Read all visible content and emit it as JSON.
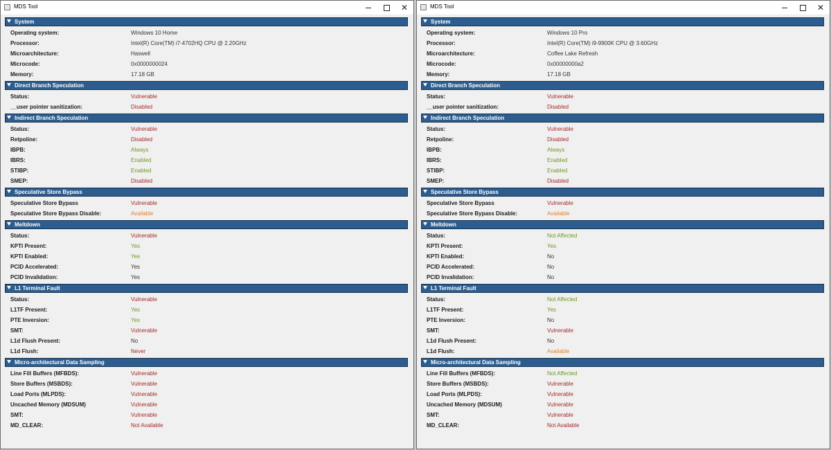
{
  "colors": {
    "header_bg": "#2c5d8e",
    "vulnerable": "#a52a2a",
    "ok": "#6b9a1f",
    "warning": "#e67e22",
    "plain": "#333333"
  },
  "windows": [
    {
      "title": "MDS Tool",
      "sections": [
        {
          "header": "System",
          "rows": [
            {
              "label": "Operating system:",
              "value": "Windows 10 Home",
              "status": "plain"
            },
            {
              "label": "Processor:",
              "value": "Intel(R) Core(TM) i7-4702HQ CPU @ 2.20GHz",
              "status": "plain"
            },
            {
              "label": "Microarchitecture:",
              "value": "Haswell",
              "status": "plain"
            },
            {
              "label": "Microcode:",
              "value": "0x0000000024",
              "status": "plain"
            },
            {
              "label": "Memory:",
              "value": "17.18 GB",
              "status": "plain"
            }
          ]
        },
        {
          "header": "Direct Branch Speculation",
          "rows": [
            {
              "label": "Status:",
              "value": "Vulnerable",
              "status": "red"
            },
            {
              "label": "__user pointer sanitization:",
              "value": "Disabled",
              "status": "red"
            }
          ]
        },
        {
          "header": "Indirect Branch Speculation",
          "rows": [
            {
              "label": "Status:",
              "value": "Vulnerable",
              "status": "red"
            },
            {
              "label": "Retpoline:",
              "value": "Disabled",
              "status": "red"
            },
            {
              "label": "IBPB:",
              "value": "Always",
              "status": "green"
            },
            {
              "label": "IBRS:",
              "value": "Enabled",
              "status": "green"
            },
            {
              "label": "STIBP:",
              "value": "Enabled",
              "status": "green"
            },
            {
              "label": "SMEP:",
              "value": "Disabled",
              "status": "red"
            }
          ]
        },
        {
          "header": "Speculative Store Bypass",
          "rows": [
            {
              "label": "Speculative Store Bypass",
              "value": "Vulnerable",
              "status": "red"
            },
            {
              "label": "Speculative Store Bypass Disable:",
              "value": "Available",
              "status": "orange"
            }
          ]
        },
        {
          "header": "Meltdown",
          "rows": [
            {
              "label": "Status:",
              "value": "Vulnerable",
              "status": "red"
            },
            {
              "label": "KPTI Present:",
              "value": "Yes",
              "status": "green"
            },
            {
              "label": "KPTI Enabled:",
              "value": "Yes",
              "status": "green"
            },
            {
              "label": "PCID Accelerated:",
              "value": "Yes",
              "status": "plain"
            },
            {
              "label": "PCID Invalidation:",
              "value": "Yes",
              "status": "plain"
            }
          ]
        },
        {
          "header": "L1 Terminal Fault",
          "rows": [
            {
              "label": "Status:",
              "value": "Vulnerable",
              "status": "red"
            },
            {
              "label": "L1TF Present:",
              "value": "Yes",
              "status": "green"
            },
            {
              "label": "PTE Inversion:",
              "value": "Yes",
              "status": "green"
            },
            {
              "label": "SMT:",
              "value": "Vulnerable",
              "status": "red"
            },
            {
              "label": "L1d Flush Present:",
              "value": "No",
              "status": "plain"
            },
            {
              "label": "L1d Flush:",
              "value": "Never",
              "status": "red"
            }
          ]
        },
        {
          "header": "Micro-architectural Data Sampling",
          "rows": [
            {
              "label": "Line Fill Buffers (MFBDS):",
              "value": "Vulnerable",
              "status": "red"
            },
            {
              "label": "Store Buffers (MSBDS):",
              "value": "Vulnerable",
              "status": "red"
            },
            {
              "label": "Load Ports (MLPDS):",
              "value": "Vulnerable",
              "status": "red"
            },
            {
              "label": "Uncached Memory (MDSUM)",
              "value": "Vulnerable",
              "status": "red"
            },
            {
              "label": "SMT:",
              "value": "Vulnerable",
              "status": "red"
            },
            {
              "label": "MD_CLEAR:",
              "value": "Not Available",
              "status": "red"
            }
          ]
        }
      ]
    },
    {
      "title": "MDS Tool",
      "sections": [
        {
          "header": "System",
          "rows": [
            {
              "label": "Operating system:",
              "value": "Windows 10 Pro",
              "status": "plain"
            },
            {
              "label": "Processor:",
              "value": "Intel(R) Core(TM) i9-9900K CPU @ 3.60GHz",
              "status": "plain"
            },
            {
              "label": "Microarchitecture:",
              "value": "Coffee Lake Refresh",
              "status": "plain"
            },
            {
              "label": "Microcode:",
              "value": "0x00000000a2",
              "status": "plain"
            },
            {
              "label": "Memory:",
              "value": "17.18 GB",
              "status": "plain"
            }
          ]
        },
        {
          "header": "Direct Branch Speculation",
          "rows": [
            {
              "label": "Status:",
              "value": "Vulnerable",
              "status": "red"
            },
            {
              "label": "__user pointer sanitization:",
              "value": "Disabled",
              "status": "red"
            }
          ]
        },
        {
          "header": "Indirect Branch Speculation",
          "rows": [
            {
              "label": "Status:",
              "value": "Vulnerable",
              "status": "red"
            },
            {
              "label": "Retpoline:",
              "value": "Disabled",
              "status": "red"
            },
            {
              "label": "IBPB:",
              "value": "Always",
              "status": "green"
            },
            {
              "label": "IBRS:",
              "value": "Enabled",
              "status": "green"
            },
            {
              "label": "STIBP:",
              "value": "Enabled",
              "status": "green"
            },
            {
              "label": "SMEP:",
              "value": "Disabled",
              "status": "red"
            }
          ]
        },
        {
          "header": "Speculative Store Bypass",
          "rows": [
            {
              "label": "Speculative Store Bypass",
              "value": "Vulnerable",
              "status": "red"
            },
            {
              "label": "Speculative Store Bypass Disable:",
              "value": "Available",
              "status": "orange"
            }
          ]
        },
        {
          "header": "Meltdown",
          "rows": [
            {
              "label": "Status:",
              "value": "Not Affected",
              "status": "green"
            },
            {
              "label": "KPTI Present:",
              "value": "Yes",
              "status": "green"
            },
            {
              "label": "KPTI Enabled:",
              "value": "No",
              "status": "plain"
            },
            {
              "label": "PCID Accelerated:",
              "value": "No",
              "status": "plain"
            },
            {
              "label": "PCID Invalidation:",
              "value": "No",
              "status": "plain"
            }
          ]
        },
        {
          "header": "L1 Terminal Fault",
          "rows": [
            {
              "label": "Status:",
              "value": "Not Affected",
              "status": "green"
            },
            {
              "label": "L1TF Present:",
              "value": "Yes",
              "status": "green"
            },
            {
              "label": "PTE Inversion:",
              "value": "No",
              "status": "plain"
            },
            {
              "label": "SMT:",
              "value": "Vulnerable",
              "status": "red"
            },
            {
              "label": "L1d Flush Present:",
              "value": "No",
              "status": "plain"
            },
            {
              "label": "L1d Flush:",
              "value": "Available",
              "status": "orange"
            }
          ]
        },
        {
          "header": "Micro-architectural Data Sampling",
          "rows": [
            {
              "label": "Line Fill Buffers (MFBDS):",
              "value": "Not Affected",
              "status": "green"
            },
            {
              "label": "Store Buffers (MSBDS):",
              "value": "Vulnerable",
              "status": "red"
            },
            {
              "label": "Load Ports (MLPDS):",
              "value": "Vulnerable",
              "status": "red"
            },
            {
              "label": "Uncached Memory (MDSUM)",
              "value": "Vulnerable",
              "status": "red"
            },
            {
              "label": "SMT:",
              "value": "Vulnerable",
              "status": "red"
            },
            {
              "label": "MD_CLEAR:",
              "value": "Not Available",
              "status": "red"
            }
          ]
        }
      ]
    }
  ]
}
